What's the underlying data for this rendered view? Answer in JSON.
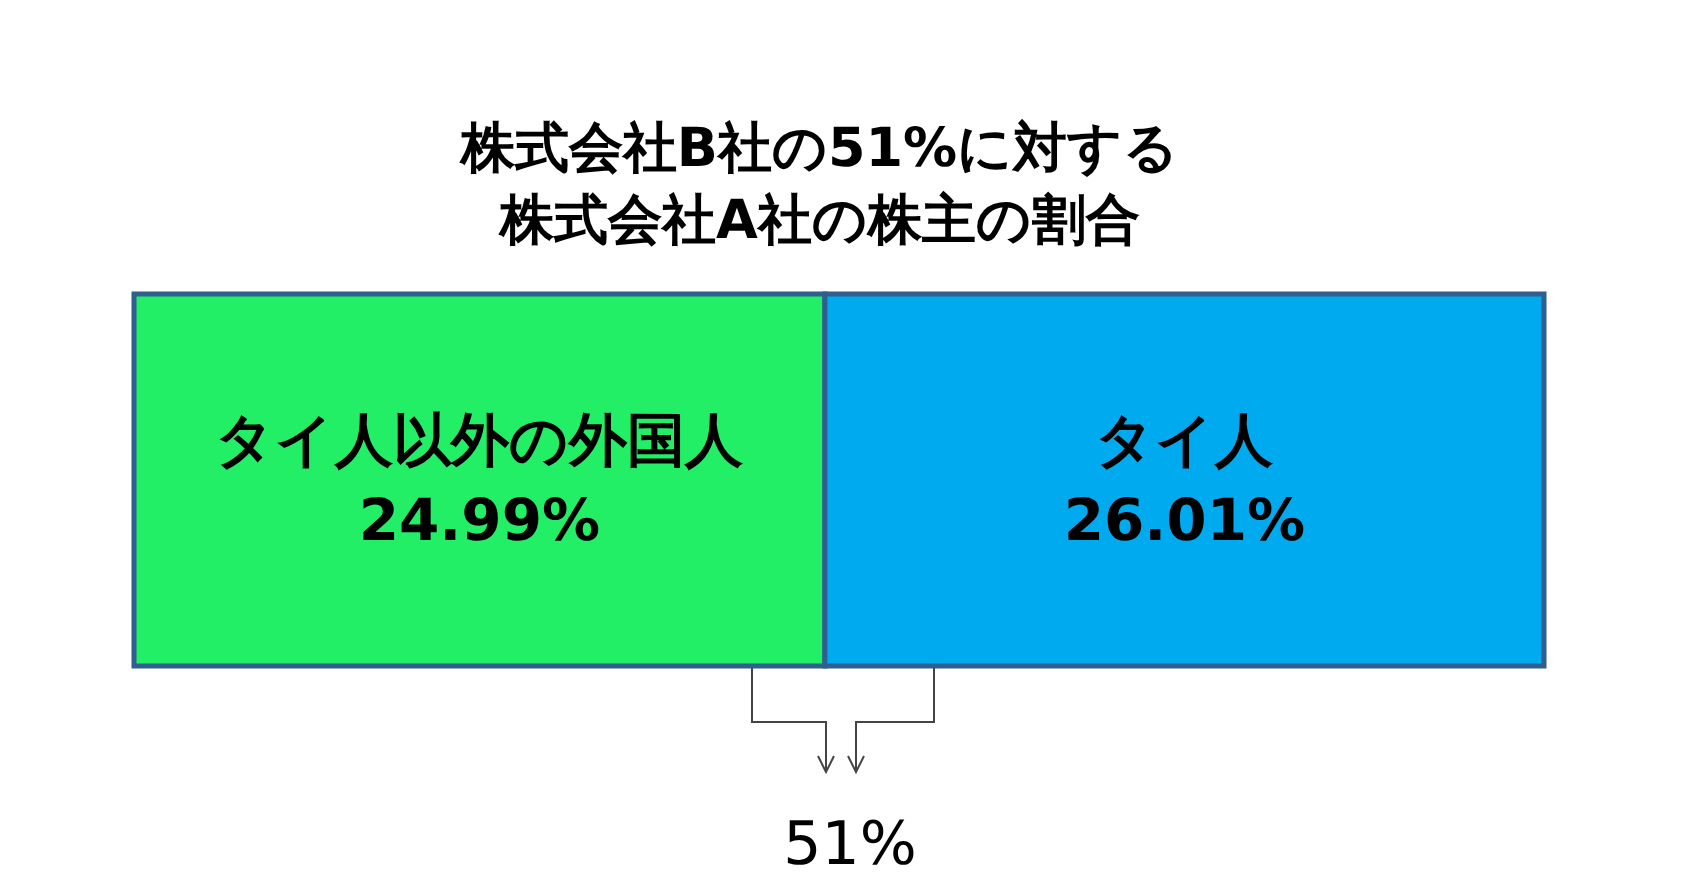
{
  "chart_data": {
    "type": "bar",
    "title": "株式会社B社の51%に対する",
    "subtitle": "株式会社A社の株主の割合",
    "categories": [
      null
    ],
    "orientation": "horizontal",
    "stacked": true,
    "xlim": [
      0,
      51
    ],
    "tick_labels": false,
    "series": [
      {
        "name": "タイ人以外の外国人",
        "color": "#22ee66",
        "values": [
          24.99
        ],
        "value_labels": [
          "24.99%"
        ]
      },
      {
        "name": "タイ人",
        "color": "#00aaee",
        "values": [
          26.01
        ],
        "value_labels": [
          "26.01%"
        ]
      }
    ],
    "annotations": [
      "51%"
    ]
  }
}
